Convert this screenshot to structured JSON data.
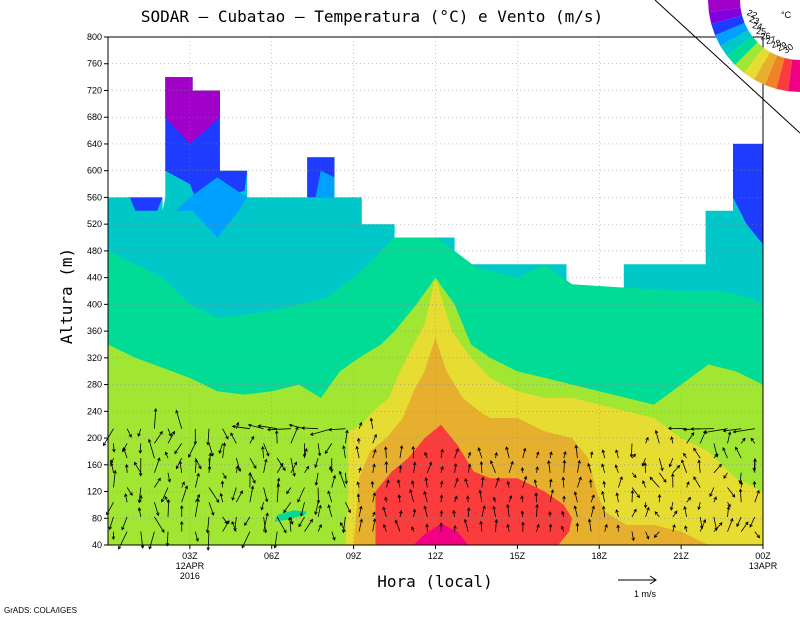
{
  "chart_data": {
    "type": "heatmap",
    "title": "SODAR – Cubatao – Temperatura (°C) e Vento (m/s)",
    "xlabel": "Hora (local)",
    "ylabel": "Altura (m)",
    "ylim": [
      40,
      800
    ],
    "y_ticks": [
      "40",
      "80",
      "120",
      "160",
      "200",
      "240",
      "280",
      "320",
      "360",
      "400",
      "440",
      "480",
      "520",
      "560",
      "600",
      "640",
      "680",
      "720",
      "760",
      "800"
    ],
    "x_ticks": [
      {
        "l1": "03Z",
        "l2": "12APR",
        "l3": "2016",
        "pos": 3
      },
      {
        "l1": "06Z",
        "l2": "",
        "l3": "",
        "pos": 6
      },
      {
        "l1": "09Z",
        "l2": "",
        "l3": "",
        "pos": 9
      },
      {
        "l1": "12Z",
        "l2": "",
        "l3": "",
        "pos": 12
      },
      {
        "l1": "15Z",
        "l2": "",
        "l3": "",
        "pos": 15
      },
      {
        "l1": "18Z",
        "l2": "",
        "l3": "",
        "pos": 18
      },
      {
        "l1": "21Z",
        "l2": "",
        "l3": "",
        "pos": 21
      },
      {
        "l1": "00Z",
        "l2": "13APR",
        "l3": "",
        "pos": 24
      }
    ],
    "xlim": [
      0,
      24
    ],
    "temperature_levels": [
      22,
      23,
      24,
      25,
      26,
      27,
      28,
      29,
      30
    ],
    "legend_unit": "°C",
    "legend_colors": [
      "#a000c8",
      "#8200dc",
      "#1e3cff",
      "#00a0ff",
      "#00c8c8",
      "#00dc96",
      "#a0e632",
      "#e6dc32",
      "#e6af2d",
      "#f08228",
      "#fa3c3c",
      "#f00082"
    ],
    "legend_labels": [
      "22",
      "23",
      "24",
      "25",
      "26",
      "27",
      "28",
      "29",
      "30"
    ],
    "vector_reference": "1 m/s",
    "credit": "GrADS: COLA/IGES"
  }
}
